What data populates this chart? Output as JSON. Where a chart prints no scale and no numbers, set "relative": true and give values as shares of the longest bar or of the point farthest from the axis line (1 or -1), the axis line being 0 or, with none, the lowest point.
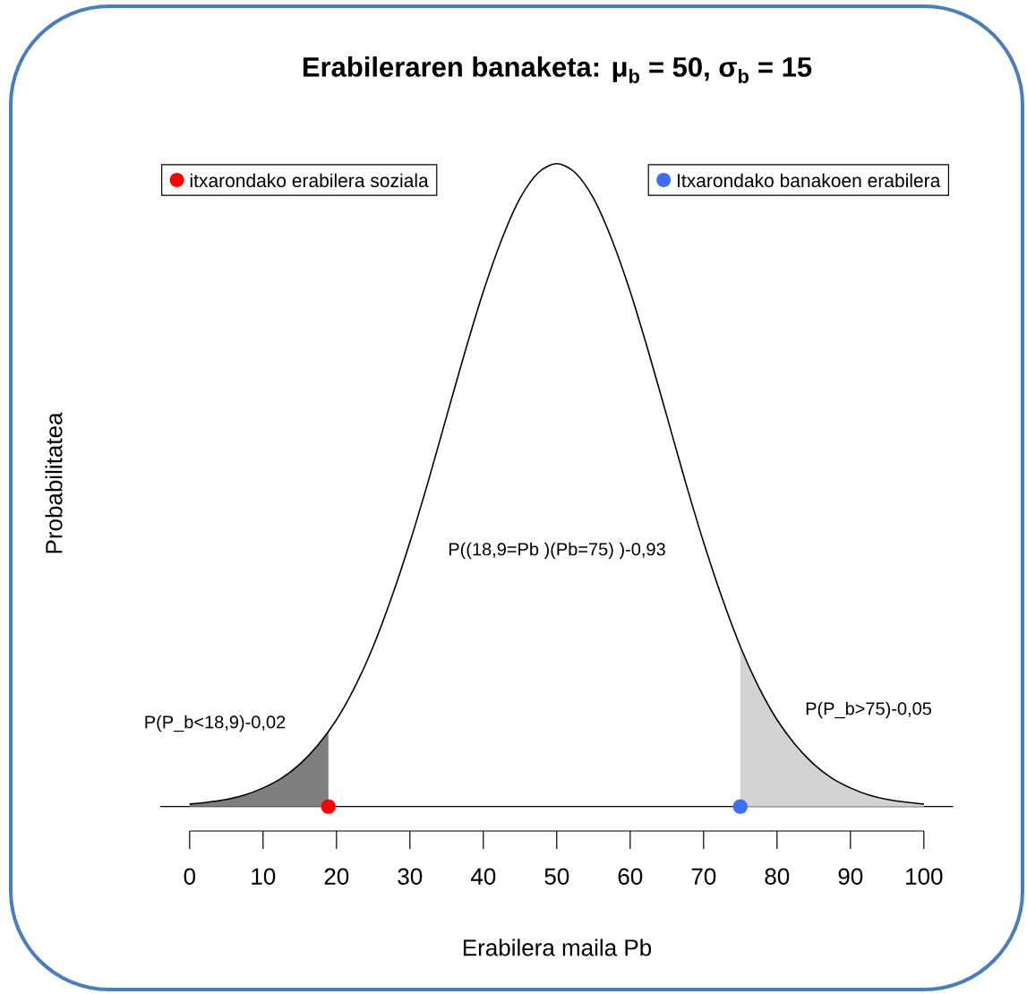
{
  "chart_data": {
    "type": "line",
    "title": "Erabileraren banaketa: μ$_{b}$ = 50, σ$_{b}$ = 15",
    "xlabel": "Erabilera maila Pb",
    "ylabel": "Probabilitatea",
    "relative": true,
    "xlim": [
      -4,
      104
    ],
    "xticks": [
      0,
      10,
      20,
      30,
      40,
      50,
      60,
      70,
      80,
      90,
      100
    ],
    "tick_labels": "x",
    "legend": "top",
    "series": [
      {
        "type": "area",
        "color": "#7f7f7f",
        "x": [
          0,
          2.5,
          5,
          7.5,
          10,
          12.5,
          15,
          17.5,
          18.9
        ],
        "values": [
          0.004,
          0.007,
          0.011,
          0.018,
          0.029,
          0.044,
          0.066,
          0.096,
          0.117
        ]
      },
      {
        "type": "area",
        "color": "#d3d3d3",
        "x": [
          75,
          77.5,
          80,
          82.5,
          85,
          87.5,
          90,
          92.5,
          95,
          97.5,
          100
        ],
        "values": [
          0.249,
          0.186,
          0.135,
          0.096,
          0.066,
          0.044,
          0.029,
          0.018,
          0.011,
          0.007,
          0.004
        ]
      },
      {
        "color": "#000000",
        "x": [
          0,
          2.5,
          5,
          7.5,
          10,
          12.5,
          15,
          17.5,
          20,
          22.5,
          25,
          27.5,
          30,
          32.5,
          35,
          37.5,
          40,
          42.5,
          45,
          47.5,
          50,
          52.5,
          55,
          57.5,
          60,
          62.5,
          65,
          67.5,
          70,
          72.5,
          75,
          77.5,
          80,
          82.5,
          85,
          87.5,
          90,
          92.5,
          95,
          97.5,
          100
        ],
        "values": [
          0.004,
          0.007,
          0.011,
          0.018,
          0.029,
          0.044,
          0.066,
          0.096,
          0.135,
          0.186,
          0.249,
          0.325,
          0.411,
          0.506,
          0.607,
          0.707,
          0.801,
          0.882,
          0.946,
          0.986,
          1,
          0.986,
          0.946,
          0.882,
          0.801,
          0.707,
          0.607,
          0.506,
          0.411,
          0.325,
          0.249,
          0.186,
          0.135,
          0.096,
          0.066,
          0.044,
          0.029,
          0.018,
          0.011,
          0.007,
          0.004
        ]
      },
      {
        "type": "scatter",
        "marker": "circle",
        "name": "itxarondako erabilera soziala",
        "color": "#ff0000",
        "x": [
          18.9
        ],
        "values": [
          0
        ]
      },
      {
        "type": "scatter",
        "marker": "circle",
        "name": "Itxarondako banakoen erabilera",
        "color": "#3d6ef5",
        "x": [
          75
        ],
        "values": [
          0
        ]
      }
    ],
    "annotations": [
      "P(P_b<18,9)-0,02",
      "P((18,9=Pb )(Pb=75) )-0,93",
      "P(P_b>75)-0,05"
    ]
  }
}
